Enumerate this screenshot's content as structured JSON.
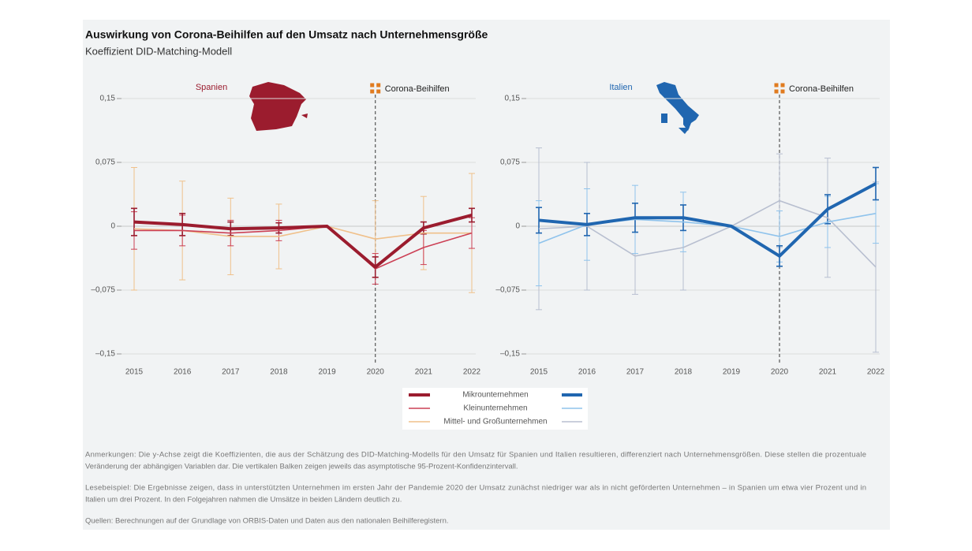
{
  "title": "Auswirkung von Corona-Beihilfen auf den Umsatz nach Unternehmensgröße",
  "subtitle": "Koeffizient DID-Matching-Modell",
  "chart_data": [
    {
      "type": "line",
      "label": "Spanien",
      "categories": [
        "2015",
        "2016",
        "2017",
        "2018",
        "2019",
        "2020",
        "2021",
        "2022"
      ],
      "ylim": [
        -0.15,
        0.15
      ],
      "yticks": [
        {
          "value": 0.15,
          "label": "0,15"
        },
        {
          "value": 0.075,
          "label": "0,075"
        },
        0,
        {
          "value": -0.075,
          "label": "–0,075"
        },
        {
          "value": -0.15,
          "label": "–0,15"
        }
      ],
      "grid": true,
      "annotation": {
        "label": "Corona-Beihilfen",
        "x": "2020"
      },
      "series": [
        {
          "name": "Mikrounternehmen",
          "color": "#9b1c2e",
          "values": [
            0.005,
            0.002,
            -0.003,
            -0.002,
            0,
            -0.048,
            -0.002,
            0.013
          ],
          "errors": [
            0.016,
            0.013,
            0.008,
            0.006,
            null,
            0.012,
            0.007,
            0.008
          ]
        },
        {
          "name": "Kleinunternehmen",
          "color": "#cc4055",
          "values": [
            -0.005,
            -0.005,
            -0.008,
            -0.005,
            0,
            -0.05,
            -0.025,
            -0.008
          ],
          "errors": [
            0.022,
            0.018,
            0.015,
            0.012,
            null,
            0.018,
            0.02,
            0.018
          ]
        },
        {
          "name": "Mittel- und Großunternehmen",
          "color": "#f0c08a",
          "values": [
            -0.003,
            -0.005,
            -0.012,
            -0.012,
            0,
            -0.015,
            -0.008,
            -0.008
          ],
          "errors": [
            0.072,
            0.058,
            0.045,
            0.038,
            null,
            0.045,
            0.043,
            0.07
          ]
        }
      ]
    },
    {
      "type": "line",
      "label": "Italien",
      "categories": [
        "2015",
        "2016",
        "2017",
        "2018",
        "2019",
        "2020",
        "2021",
        "2022"
      ],
      "ylim": [
        -0.15,
        0.15
      ],
      "yticks": [
        {
          "value": 0.15,
          "label": "0,15"
        },
        {
          "value": 0.075,
          "label": "0,075"
        },
        0,
        {
          "value": -0.075,
          "label": "–0,075"
        },
        {
          "value": -0.15,
          "label": "–0,15"
        }
      ],
      "grid": true,
      "annotation": {
        "label": "Corona-Beihilfen",
        "x": "2020"
      },
      "series": [
        {
          "color": "#2066b0",
          "values": [
            0.007,
            0.002,
            0.01,
            0.01,
            0,
            -0.035,
            0.02,
            0.05
          ],
          "errors": [
            0.015,
            0.013,
            0.017,
            0.015,
            null,
            0.012,
            0.017,
            0.019
          ]
        },
        {
          "color": "#8fc3ec",
          "values": [
            -0.02,
            0.002,
            0.008,
            0.005,
            0,
            -0.012,
            0.005,
            0.015
          ],
          "errors": [
            0.05,
            0.042,
            0.04,
            0.035,
            null,
            0.03,
            0.03,
            0.035
          ]
        },
        {
          "color": "#b8bfd0",
          "values": [
            -0.003,
            0,
            -0.035,
            -0.025,
            0,
            0.03,
            0.01,
            -0.048
          ],
          "errors": [
            0.095,
            0.075,
            0.045,
            0.05,
            null,
            0.055,
            0.07,
            0.1
          ]
        }
      ]
    }
  ],
  "notes": [
    "Anmerkungen: Die y-Achse zeigt die Koeffizienten, die aus der Schätzung des DID-Matching-Modells für den Umsatz für Spanien und Italien resultieren, differenziert nach Unternehmensgrößen. Diese stellen die prozentuale",
    "Veränderung der abhängigen Variablen dar. Die vertikalen Balken zeigen jeweils das asymptotische 95-Prozent-Konfidenzintervall.",
    "Lesebeispiel: Die Ergebnisse zeigen, dass in unterstützten Unternehmen im ersten Jahr der Pandemie 2020 der Umsatz zunächst niedriger war als in nicht geförderten Unternehmen – in Spanien um etwa vier Prozent und in",
    "Italien um drei Prozent. In den Folgejahren nahmen die Umsätze in beiden Ländern deutlich zu.",
    "Quellen: Berechnungen auf der Grundlage von ORBIS-Daten und Daten aus den nationalen Beihilferegistern."
  ]
}
